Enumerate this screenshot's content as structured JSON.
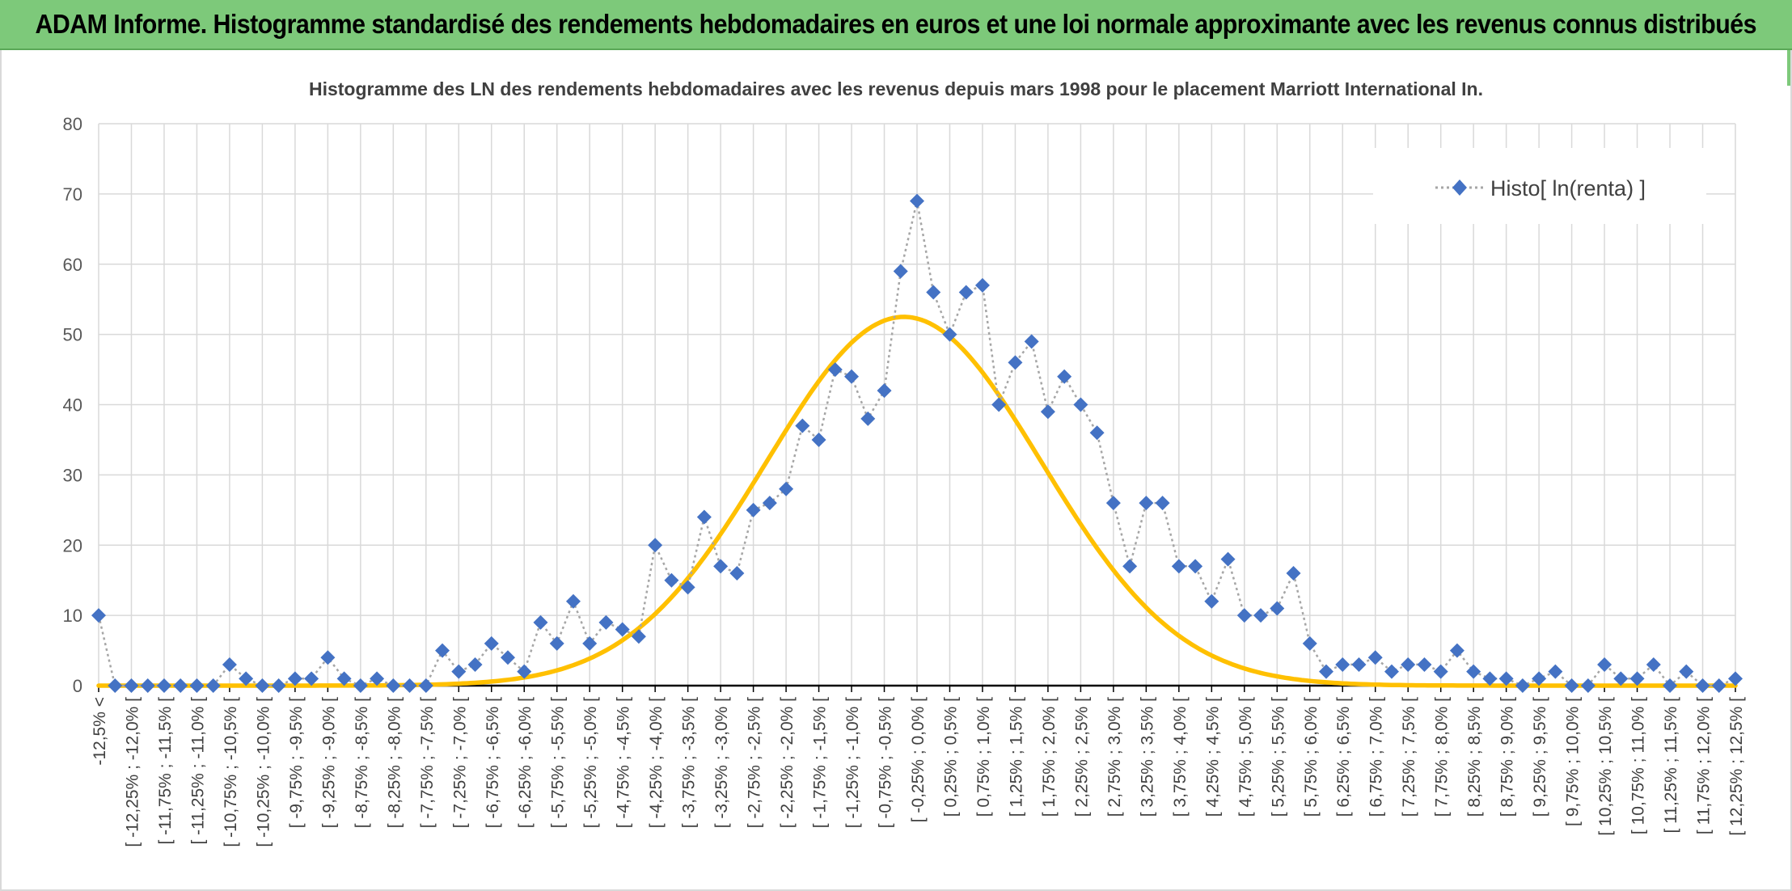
{
  "header": {
    "title": "ADAM Informe. Histogramme standardisé des rendements hebdomadaires en euros et une loi normale approximante avec les revenus connus distribués"
  },
  "colors": {
    "header_bg": "#7dc97a",
    "series_marker": "#4472c4",
    "series_line": "#a6a6a6",
    "normal_curve": "#ffc000",
    "grid": "#d9d9d9",
    "axis": "#000000"
  },
  "chart_data": {
    "type": "line",
    "title": "Histogramme des LN des rendements hebdomadaires avec les revenus depuis mars 1998 pour le placement Marriott International In.",
    "xlabel": "",
    "ylabel": "",
    "ylim": [
      0,
      80
    ],
    "yticks": [
      0,
      10,
      20,
      30,
      40,
      50,
      60,
      70,
      80
    ],
    "grid": true,
    "legend_position": "top-right",
    "categories": [
      "-12,5% <",
      "[ -12,25% ; -12,0% [",
      "[ -11,75% ; -11,5% [",
      "[ -11,25% ; -11,0% [",
      "[ -10,75% ; -10,5% [",
      "[ -10,25% ; -10,0% [",
      "[ -9,75% ; -9,5% [",
      "[ -9,25% ; -9,0% [",
      "[ -8,75% ; -8,5% [",
      "[ -8,25% ; -8,0% [",
      "[ -7,75% ; -7,5% [",
      "[ -7,25% ; -7,0% [",
      "[ -6,75% ; -6,5% [",
      "[ -6,25% ; -6,0% [",
      "[ -5,75% ; -5,5% [",
      "[ -5,25% ; -5,0% [",
      "[ -4,75% ; -4,5% [",
      "[ -4,25% ; -4,0% [",
      "[ -3,75% ; -3,5% [",
      "[ -3,25% ; -3,0% [",
      "[ -2,75% ; -2,5% [",
      "[ -2,25% ; -2,0% [",
      "[ -1,75% ; -1,5% [",
      "[ -1,25% ; -1,0% [",
      "[ -0,75% ; -0,5% [",
      "[ -0,25% ; 0,0% [",
      "[ 0,25% ; 0,5% [",
      "[ 0,75% ; 1,0% [",
      "[ 1,25% ; 1,5% [",
      "[ 1,75% ; 2,0% [",
      "[ 2,25% ; 2,5% [",
      "[ 2,75% ; 3,0% [",
      "[ 3,25% ; 3,5% [",
      "[ 3,75% ; 4,0% [",
      "[ 4,25% ; 4,5% [",
      "[ 4,75% ; 5,0% [",
      "[ 5,25% ; 5,5% [",
      "[ 5,75% ; 6,0% [",
      "[ 6,25% ; 6,5% [",
      "[ 6,75% ; 7,0% [",
      "[ 7,25% ; 7,5% [",
      "[ 7,75% ; 8,0% [",
      "[ 8,25% ; 8,5% [",
      "[ 8,75% ; 9,0% [",
      "[ 9,25% ; 9,5% [",
      "[ 9,75% ; 10,0% [",
      "[ 10,25% ; 10,5% [",
      "[ 10,75% ; 11,0% [",
      "[ 11,25% ; 11,5% [",
      "[ 11,75% ; 12,0% [",
      "[ 12,25% ; 12,5% ["
    ],
    "x": [
      -12.5,
      -12.25,
      -12.0,
      -11.75,
      -11.5,
      -11.25,
      -11.0,
      -10.75,
      -10.5,
      -10.25,
      -10.0,
      -9.75,
      -9.5,
      -9.25,
      -9.0,
      -8.75,
      -8.5,
      -8.25,
      -8.0,
      -7.75,
      -7.5,
      -7.25,
      -7.0,
      -6.75,
      -6.5,
      -6.25,
      -6.0,
      -5.75,
      -5.5,
      -5.25,
      -5.0,
      -4.75,
      -4.5,
      -4.25,
      -4.0,
      -3.75,
      -3.5,
      -3.25,
      -3.0,
      -2.75,
      -2.5,
      -2.25,
      -2.0,
      -1.75,
      -1.5,
      -1.25,
      -1.0,
      -0.75,
      -0.5,
      -0.25,
      0.0,
      0.25,
      0.5,
      0.75,
      1.0,
      1.25,
      1.5,
      1.75,
      2.0,
      2.25,
      2.5,
      2.75,
      3.0,
      3.25,
      3.5,
      3.75,
      4.0,
      4.25,
      4.5,
      4.75,
      5.0,
      5.25,
      5.5,
      5.75,
      6.0,
      6.25,
      6.5,
      6.75,
      7.0,
      7.25,
      7.5,
      7.75,
      8.0,
      8.25,
      8.5,
      8.75,
      9.0,
      9.25,
      9.5,
      9.75,
      10.0,
      10.25,
      10.5,
      10.75,
      11.0,
      11.25,
      11.5,
      11.75,
      12.0,
      12.25,
      12.5
    ],
    "series": [
      {
        "name": "Histo[ ln(renta) ]",
        "style": "markers-dotted",
        "values": [
          10,
          0,
          0,
          0,
          0,
          0,
          0,
          0,
          3,
          1,
          0,
          0,
          1,
          1,
          4,
          1,
          0,
          1,
          0,
          0,
          0,
          5,
          2,
          3,
          6,
          4,
          2,
          9,
          6,
          12,
          6,
          9,
          8,
          7,
          20,
          15,
          14,
          24,
          17,
          16,
          25,
          26,
          28,
          37,
          35,
          45,
          44,
          38,
          42,
          59,
          69,
          56,
          50,
          56,
          57,
          40,
          46,
          49,
          39,
          44,
          40,
          36,
          26,
          17,
          26,
          26,
          17,
          17,
          12,
          18,
          10,
          10,
          11,
          16,
          6,
          2,
          3,
          3,
          4,
          2,
          3,
          3,
          2,
          5,
          2,
          1,
          1,
          0,
          1,
          2,
          0,
          0,
          3,
          1,
          1,
          3,
          0,
          2,
          0,
          0,
          1
        ]
      },
      {
        "name": "",
        "style": "smooth-line",
        "distribution": "normal",
        "peak": 52.5,
        "mean": -0.2,
        "sd": 2.1
      }
    ]
  }
}
